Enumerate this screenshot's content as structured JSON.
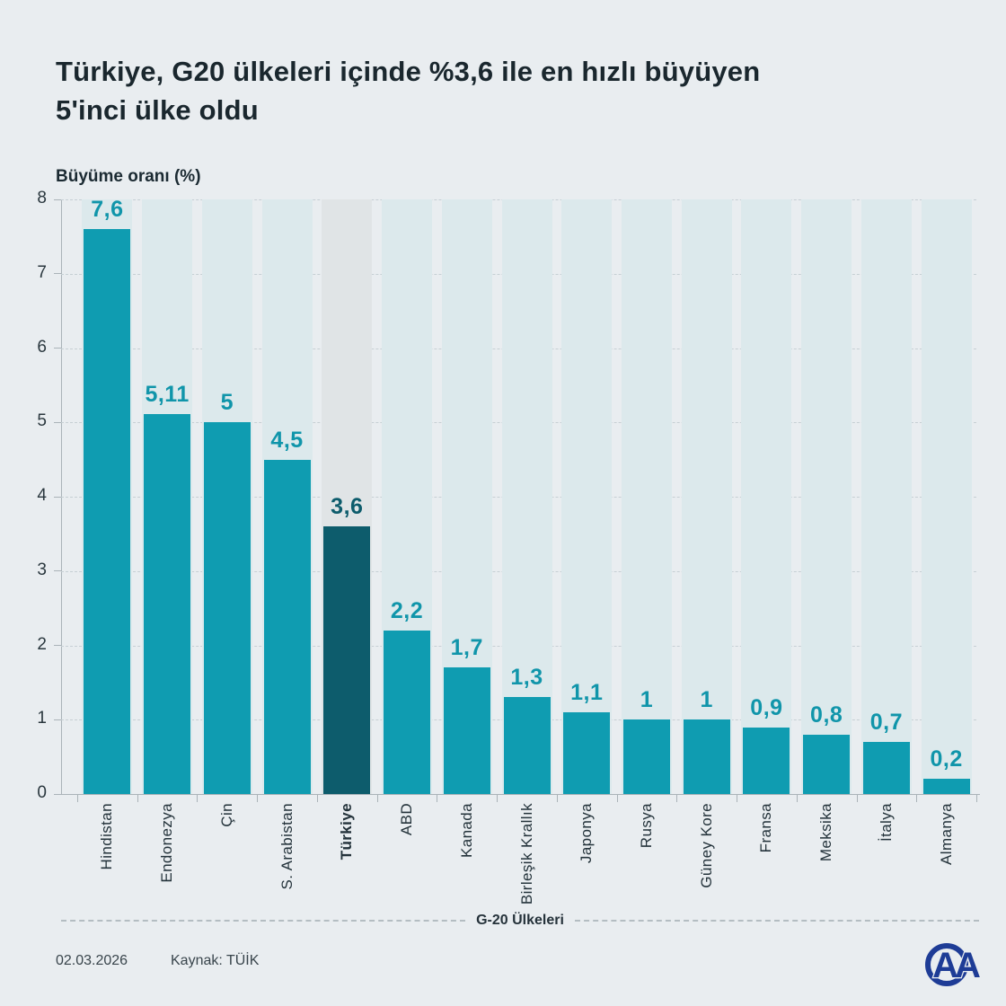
{
  "header": {
    "title_line1": "Türkiye, G20 ülkeleri içinde %3,6 ile en hızlı büyüyen",
    "title_line2": "5'inci ülke oldu"
  },
  "chart_data": {
    "type": "bar",
    "title": "Türkiye, G20 ülkeleri içinde %3,6 ile en hızlı büyüyen 5'inci ülke oldu",
    "ylabel": "Büyüme oranı (%)",
    "xlabel": "G-20 Ülkeleri",
    "ylim": [
      0,
      8
    ],
    "yticks": [
      0,
      1,
      2,
      3,
      4,
      5,
      6,
      7,
      8
    ],
    "grid": "horizontal-dashed",
    "legend": "none",
    "categories": [
      "Hindistan",
      "Endonezya",
      "Çin",
      "S. Arabistan",
      "Türkiye",
      "ABD",
      "Kanada",
      "Birleşik Krallık",
      "Japonya",
      "Rusya",
      "Güney Kore",
      "Fransa",
      "Meksika",
      "İtalya",
      "Almanya"
    ],
    "values": [
      7.6,
      5.11,
      5,
      4.5,
      3.6,
      2.2,
      1.7,
      1.3,
      1.1,
      1,
      1,
      0.9,
      0.8,
      0.7,
      0.2
    ],
    "value_labels": [
      "7,6",
      "5,11",
      "5",
      "4,5",
      "3,6",
      "2,2",
      "1,7",
      "1,3",
      "1,1",
      "1",
      "1",
      "0,9",
      "0,8",
      "0,7",
      "0,2"
    ],
    "highlight_index": 4,
    "highlight_category": "Türkiye"
  },
  "colors": {
    "background": "#e9edf0",
    "bar": "#0f9cb1",
    "bar_highlight": "#0d5c6c",
    "band": "#dce9ec",
    "band_highlight": "#e0e4e6",
    "value_label": "#1095aa",
    "value_label_highlight": "#0d5c6c",
    "logo_blue": "#1e3c96"
  },
  "footer": {
    "date": "02.03.2026",
    "source": "Kaynak: TÜİK"
  },
  "logo": {
    "text": "AA"
  }
}
